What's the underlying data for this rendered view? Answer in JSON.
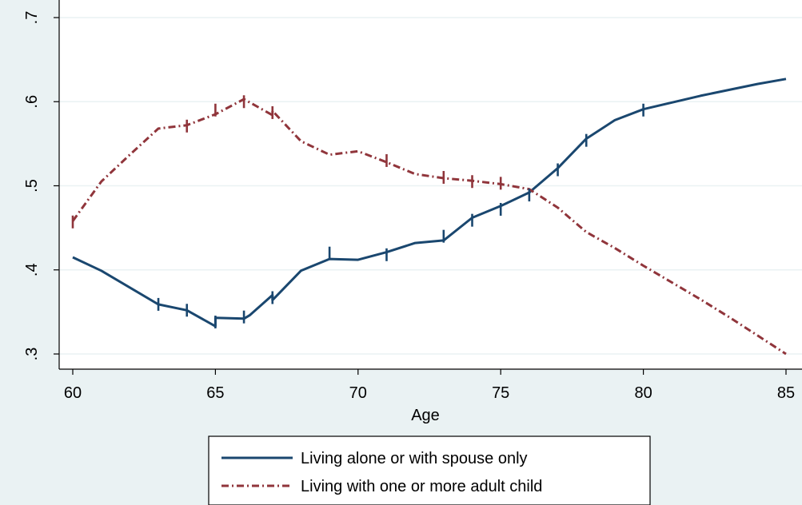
{
  "chart_data": {
    "type": "line",
    "title": "",
    "xlabel": "Age",
    "ylabel": "",
    "xlim": [
      60,
      85
    ],
    "ylim": [
      0.3,
      0.7
    ],
    "x_ticks": [
      60,
      65,
      70,
      75,
      80,
      85
    ],
    "x_tick_labels": [
      "60",
      "65",
      "70",
      "75",
      "80",
      "85"
    ],
    "y_ticks": [
      0.3,
      0.4,
      0.5,
      0.6,
      0.7
    ],
    "y_tick_labels": [
      ".3",
      ".4",
      ".5",
      ".6",
      ".7"
    ],
    "grid": true,
    "legend_position": "bottom",
    "series": [
      {
        "name": "Living alone or with spouse only",
        "color": "#1a476f",
        "style": "solid",
        "points": [
          [
            60,
            0.415
          ],
          [
            61,
            0.399
          ],
          [
            63,
            0.359
          ],
          [
            64,
            0.352
          ],
          [
            65,
            0.333
          ],
          [
            65,
            0.343
          ],
          [
            66,
            0.342
          ],
          [
            66.2,
            0.346
          ],
          [
            67,
            0.37
          ],
          [
            67,
            0.364
          ],
          [
            68,
            0.399
          ],
          [
            69,
            0.413
          ],
          [
            70,
            0.412
          ],
          [
            71,
            0.421
          ],
          [
            72,
            0.432
          ],
          [
            73,
            0.435
          ],
          [
            74,
            0.462
          ],
          [
            75,
            0.476
          ],
          [
            76,
            0.492
          ],
          [
            77,
            0.521
          ],
          [
            78,
            0.556
          ],
          [
            79,
            0.578
          ],
          [
            80,
            0.591
          ],
          [
            81,
            0.599
          ],
          [
            82,
            0.607
          ],
          [
            83,
            0.614
          ],
          [
            84,
            0.621
          ],
          [
            85,
            0.627
          ]
        ]
      },
      {
        "name": "Living with one or more adult child",
        "color": "#90353b",
        "style": "dashdot",
        "points": [
          [
            60,
            0.458
          ],
          [
            61,
            0.505
          ],
          [
            62,
            0.537
          ],
          [
            63,
            0.568
          ],
          [
            64,
            0.572
          ],
          [
            65,
            0.585
          ],
          [
            66,
            0.603
          ],
          [
            67,
            0.584
          ],
          [
            67,
            0.589
          ],
          [
            68,
            0.553
          ],
          [
            69,
            0.537
          ],
          [
            70,
            0.541
          ],
          [
            71,
            0.528
          ],
          [
            72,
            0.514
          ],
          [
            73,
            0.509
          ],
          [
            74,
            0.506
          ],
          [
            75,
            0.502
          ],
          [
            76,
            0.496
          ],
          [
            77,
            0.474
          ],
          [
            78,
            0.445
          ],
          [
            79,
            0.426
          ],
          [
            80,
            0.405
          ],
          [
            81,
            0.385
          ],
          [
            82,
            0.365
          ],
          [
            83,
            0.344
          ],
          [
            84,
            0.322
          ],
          [
            85,
            0.3
          ]
        ]
      }
    ],
    "jitter_marks": [
      {
        "series": 0,
        "x": 63,
        "y": 0.359
      },
      {
        "series": 0,
        "x": 64,
        "y": 0.352
      },
      {
        "series": 0,
        "x": 65,
        "y": 0.338
      },
      {
        "series": 0,
        "x": 66,
        "y": 0.344
      },
      {
        "series": 0,
        "x": 67,
        "y": 0.367
      },
      {
        "series": 0,
        "x": 69,
        "y": 0.42
      },
      {
        "series": 0,
        "x": 71,
        "y": 0.418
      },
      {
        "series": 0,
        "x": 73,
        "y": 0.44
      },
      {
        "series": 0,
        "x": 74,
        "y": 0.459
      },
      {
        "series": 0,
        "x": 75,
        "y": 0.472
      },
      {
        "series": 0,
        "x": 76,
        "y": 0.489
      },
      {
        "series": 0,
        "x": 77,
        "y": 0.519
      },
      {
        "series": 0,
        "x": 78,
        "y": 0.554
      },
      {
        "series": 0,
        "x": 80,
        "y": 0.59
      },
      {
        "series": 1,
        "x": 60,
        "y": 0.457
      },
      {
        "series": 1,
        "x": 64,
        "y": 0.571
      },
      {
        "series": 1,
        "x": 65,
        "y": 0.59
      },
      {
        "series": 1,
        "x": 66,
        "y": 0.6
      },
      {
        "series": 1,
        "x": 67,
        "y": 0.587
      },
      {
        "series": 1,
        "x": 71,
        "y": 0.53
      },
      {
        "series": 1,
        "x": 73,
        "y": 0.51
      },
      {
        "series": 1,
        "x": 74,
        "y": 0.505
      },
      {
        "series": 1,
        "x": 75,
        "y": 0.503
      }
    ]
  }
}
